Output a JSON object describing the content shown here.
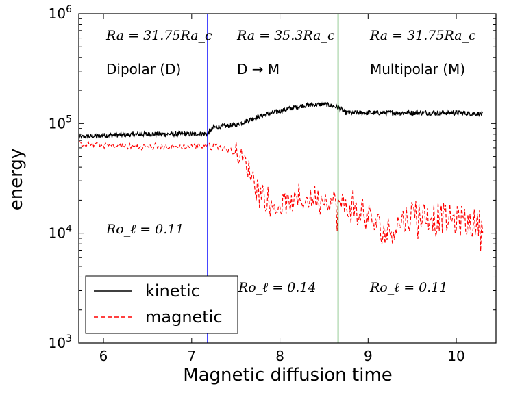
{
  "colors": {
    "kinetic": "#000000",
    "magnetic": "#ff0000",
    "transition_dm": "#0000ff",
    "transition_m": "#008000"
  },
  "chart_data": {
    "type": "line",
    "title": "",
    "xlabel": "Magnetic diffusion time",
    "ylabel": "energy",
    "xlim": [
      5.72,
      10.45
    ],
    "ylim": [
      1000,
      1000000
    ],
    "yscale": "log",
    "x_ticks": [
      "6",
      "7",
      "8",
      "9",
      "10"
    ],
    "y_ticks": [
      {
        "base": "10",
        "exp": "3"
      },
      {
        "base": "10",
        "exp": "4"
      },
      {
        "base": "10",
        "exp": "5"
      },
      {
        "base": "10",
        "exp": "6"
      }
    ],
    "grid": false,
    "legend": {
      "position": "bottom-left",
      "entries": [
        "kinetic",
        "magnetic"
      ]
    },
    "vlines": [
      {
        "x": 7.18,
        "color": "blue"
      },
      {
        "x": 8.66,
        "color": "green"
      }
    ],
    "series": [
      {
        "name": "kinetic",
        "style": "solid",
        "x": [
          5.72,
          6.0,
          6.5,
          7.0,
          7.18,
          7.25,
          7.5,
          7.75,
          8.0,
          8.25,
          8.5,
          8.66,
          8.75,
          9.0,
          9.5,
          10.0,
          10.3
        ],
        "y": [
          75000,
          78000,
          80000,
          80000,
          81000,
          92000,
          97000,
          115000,
          130000,
          145000,
          150000,
          140000,
          125000,
          125000,
          125000,
          125000,
          122000
        ]
      },
      {
        "name": "magnetic",
        "style": "dashed",
        "x": [
          5.72,
          6.0,
          6.5,
          7.0,
          7.18,
          7.3,
          7.5,
          7.6,
          7.7,
          7.8,
          7.9,
          8.0,
          8.25,
          8.5,
          8.66,
          8.8,
          9.0,
          9.2,
          9.5,
          9.8,
          10.0,
          10.3
        ],
        "y": [
          65000,
          63000,
          61000,
          62000,
          64000,
          62000,
          55000,
          45000,
          32000,
          22000,
          17000,
          18000,
          20000,
          21000,
          18000,
          17000,
          14000,
          10000,
          15000,
          14000,
          13000,
          12000
        ]
      }
    ],
    "annotations": [
      {
        "id": "ra_d",
        "text": "Ra = 31.75Ra_c",
        "math": "serif"
      },
      {
        "id": "ra_dm",
        "text": "Ra = 35.3Ra_c",
        "math": "serif"
      },
      {
        "id": "ra_m",
        "text": "Ra = 31.75Ra_c",
        "math": "serif"
      },
      {
        "id": "label_d",
        "text": "Dipolar (D)"
      },
      {
        "id": "label_dm",
        "text": "D → M"
      },
      {
        "id": "label_m",
        "text": "Multipolar (M)"
      },
      {
        "id": "ro_d",
        "text": "Ro_ℓ = 0.11",
        "math": "serif"
      },
      {
        "id": "ro_dm",
        "text": "Ro_ℓ = 0.14",
        "math": "serif"
      },
      {
        "id": "ro_m",
        "text": "Ro_ℓ = 0.11",
        "math": "serif"
      }
    ]
  }
}
